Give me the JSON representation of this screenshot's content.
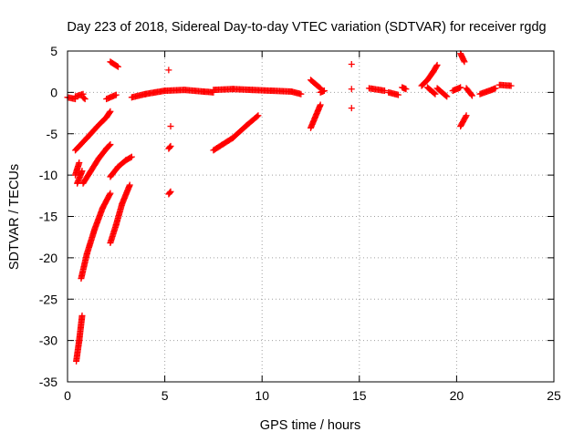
{
  "chart_data": {
    "type": "scatter",
    "title": "Day 223 of 2018, Sidereal Day-to-day VTEC variation (SDTVAR) for receiver rgdg",
    "xlabel": "GPS time / hours",
    "ylabel": "SDTVAR / TECUs",
    "xlim": [
      0,
      25
    ],
    "ylim": [
      -35,
      5
    ],
    "xticks": [
      0,
      5,
      10,
      15,
      20,
      25
    ],
    "yticks": [
      5,
      0,
      -5,
      -10,
      -15,
      -20,
      -25,
      -30,
      -35
    ],
    "grid": true,
    "marker": "+",
    "series_color": "#ff0000",
    "series": [
      {
        "name": "SDTVAR",
        "segments": [
          {
            "x": [
              0.0,
              0.4
            ],
            "y": [
              -0.6,
              -0.8
            ]
          },
          {
            "x": [
              0.4,
              0.8
            ],
            "y": [
              -0.5,
              -0.2
            ]
          },
          {
            "x": [
              0.8,
              0.9
            ],
            "y": [
              -0.6,
              -0.8
            ]
          },
          {
            "x": [
              0.4,
              1.0,
              1.5,
              2.0,
              2.2
            ],
            "y": [
              -7.0,
              -5.5,
              -4.2,
              -3.0,
              -2.3
            ]
          },
          {
            "x": [
              0.4,
              0.6
            ],
            "y": [
              -10.0,
              -8.5
            ]
          },
          {
            "x": [
              0.5,
              0.75
            ],
            "y": [
              -11.0,
              -9.5
            ]
          },
          {
            "x": [
              0.8,
              1.2,
              1.6,
              2.0,
              2.2
            ],
            "y": [
              -11.0,
              -9.5,
              -8.0,
              -6.8,
              -6.3
            ]
          },
          {
            "x": [
              0.7,
              1.0,
              1.4,
              1.8,
              2.2
            ],
            "y": [
              -22.5,
              -19.5,
              -16.5,
              -14.0,
              -12.2
            ]
          },
          {
            "x": [
              0.45,
              0.6,
              0.75
            ],
            "y": [
              -32.5,
              -30.0,
              -27.0
            ]
          },
          {
            "x": [
              2.2,
              2.6
            ],
            "y": [
              3.7,
              3.1
            ]
          },
          {
            "x": [
              2.0,
              2.5
            ],
            "y": [
              -0.8,
              -0.3
            ]
          },
          {
            "x": [
              2.2,
              2.6,
              3.0,
              3.3
            ],
            "y": [
              -10.2,
              -9.0,
              -8.2,
              -7.8
            ]
          },
          {
            "x": [
              2.2,
              2.5,
              2.8,
              3.2
            ],
            "y": [
              -18.2,
              -16.0,
              -13.5,
              -11.2
            ]
          },
          {
            "x": [
              3.3,
              4.0,
              4.5,
              5.0
            ],
            "y": [
              -0.6,
              -0.2,
              0.0,
              0.2
            ]
          },
          {
            "x": [
              5.0,
              6.0,
              7.0,
              7.5
            ],
            "y": [
              0.2,
              0.3,
              0.1,
              0.0
            ]
          },
          {
            "x": [
              7.5,
              8.5,
              9.5,
              10.5,
              11.5,
              12.0
            ],
            "y": [
              0.3,
              0.4,
              0.3,
              0.2,
              0.1,
              -0.2
            ]
          },
          {
            "x": [
              7.5,
              8.5,
              9.2,
              9.8
            ],
            "y": [
              -7.0,
              -5.5,
              -4.0,
              -2.8
            ]
          },
          {
            "x": [
              5.2
            ],
            "y": [
              2.7
            ]
          },
          {
            "x": [
              5.3
            ],
            "y": [
              -4.1
            ]
          },
          {
            "x": [
              5.2,
              5.3
            ],
            "y": [
              -6.8,
              -6.5
            ]
          },
          {
            "x": [
              5.2,
              5.3
            ],
            "y": [
              -12.3,
              -12.0
            ]
          },
          {
            "x": [
              12.5,
              13.0
            ],
            "y": [
              1.5,
              0.5
            ]
          },
          {
            "x": [
              12.5,
              13.0
            ],
            "y": [
              -4.3,
              -1.5
            ]
          },
          {
            "x": [
              13.0,
              13.2
            ],
            "y": [
              0.0,
              0.2
            ]
          },
          {
            "x": [
              14.6
            ],
            "y": [
              3.4
            ]
          },
          {
            "x": [
              14.6
            ],
            "y": [
              0.4
            ]
          },
          {
            "x": [
              14.6
            ],
            "y": [
              -1.9
            ]
          },
          {
            "x": [
              15.5,
              16.3
            ],
            "y": [
              0.5,
              0.2
            ]
          },
          {
            "x": [
              16.5,
              17.0
            ],
            "y": [
              0.0,
              -0.3
            ]
          },
          {
            "x": [
              17.2,
              17.4
            ],
            "y": [
              0.6,
              0.4
            ]
          },
          {
            "x": [
              18.2,
              18.5,
              18.8,
              19.0
            ],
            "y": [
              0.8,
              1.5,
              2.5,
              3.3
            ]
          },
          {
            "x": [
              18.5,
              18.9
            ],
            "y": [
              0.6,
              -0.2
            ]
          },
          {
            "x": [
              19.0,
              19.5
            ],
            "y": [
              0.5,
              -0.5
            ]
          },
          {
            "x": [
              19.8,
              20.2
            ],
            "y": [
              0.2,
              0.6
            ]
          },
          {
            "x": [
              20.2,
              20.4
            ],
            "y": [
              4.7,
              3.7
            ]
          },
          {
            "x": [
              20.2,
              20.5
            ],
            "y": [
              -4.1,
              -2.8
            ]
          },
          {
            "x": [
              20.5,
              20.8
            ],
            "y": [
              0.5,
              -0.4
            ]
          },
          {
            "x": [
              21.2,
              21.8,
              22.0
            ],
            "y": [
              -0.2,
              0.3,
              0.5
            ]
          },
          {
            "x": [
              22.2,
              22.8
            ],
            "y": [
              0.9,
              0.8
            ]
          }
        ]
      }
    ]
  }
}
